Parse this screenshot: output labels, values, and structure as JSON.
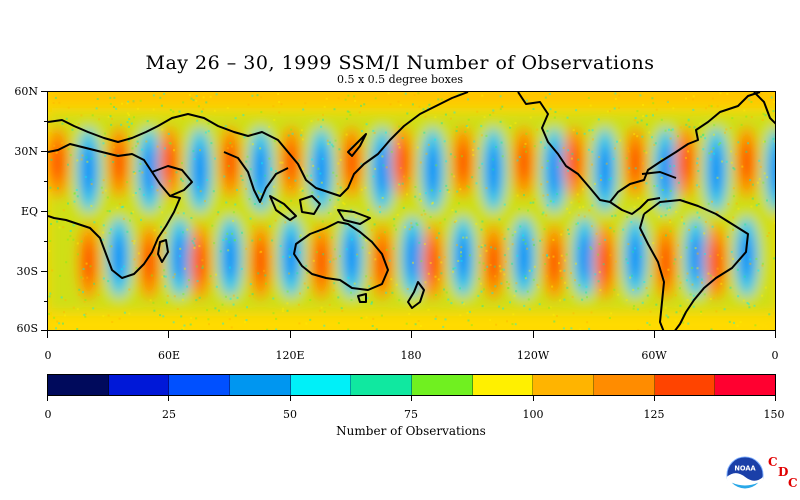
{
  "title": "May 26 – 30, 1999 SSM/I Number of Observations",
  "subtitle": "0.5 x 0.5 degree boxes",
  "lat_labels": [
    "60N",
    "30N",
    "EQ",
    "30S",
    "60S"
  ],
  "lon_labels": [
    "0",
    "60E",
    "120E",
    "180",
    "120W",
    "60W",
    "0"
  ],
  "colorbar": {
    "ticks": [
      "0",
      "25",
      "50",
      "75",
      "100",
      "125",
      "150"
    ],
    "title": "Number of Observations",
    "colors": [
      "#000a5c",
      "#0018d8",
      "#0050ff",
      "#0096f0",
      "#00f0f8",
      "#10e8a0",
      "#70f020",
      "#fff000",
      "#ffb400",
      "#ff8c00",
      "#ff4400",
      "#ff0030"
    ]
  },
  "logo": {
    "text": "NOAA",
    "letters": [
      "C",
      "D",
      "C"
    ]
  },
  "chart_data": {
    "type": "heatmap",
    "title": "May 26 – 30, 1999 SSM/I Number of Observations",
    "subtitle": "0.5 x 0.5 degree boxes",
    "xlabel": "",
    "ylabel": "",
    "x_ticks": [
      "0",
      "60E",
      "120E",
      "180",
      "120W",
      "60W",
      "0"
    ],
    "y_ticks": [
      "60N",
      "30N",
      "EQ",
      "30S",
      "60S"
    ],
    "xlim": [
      0,
      360
    ],
    "ylim": [
      -60,
      60
    ],
    "color_scale": {
      "min": 0,
      "max": 150,
      "ticks": [
        0,
        25,
        50,
        75,
        100,
        125,
        150
      ],
      "label": "Number of Observations"
    },
    "band_peak_longitudes_north": [
      5,
      35,
      60,
      90,
      120,
      150,
      175,
      205,
      235,
      260,
      290,
      315,
      345
    ],
    "band_peak_longitudes_south": [
      20,
      50,
      75,
      105,
      135,
      165,
      190,
      220,
      250,
      275,
      305,
      330
    ],
    "typical_values": {
      "swath_gap_min": 25,
      "swath_peak_max": 150,
      "background": 90
    }
  }
}
